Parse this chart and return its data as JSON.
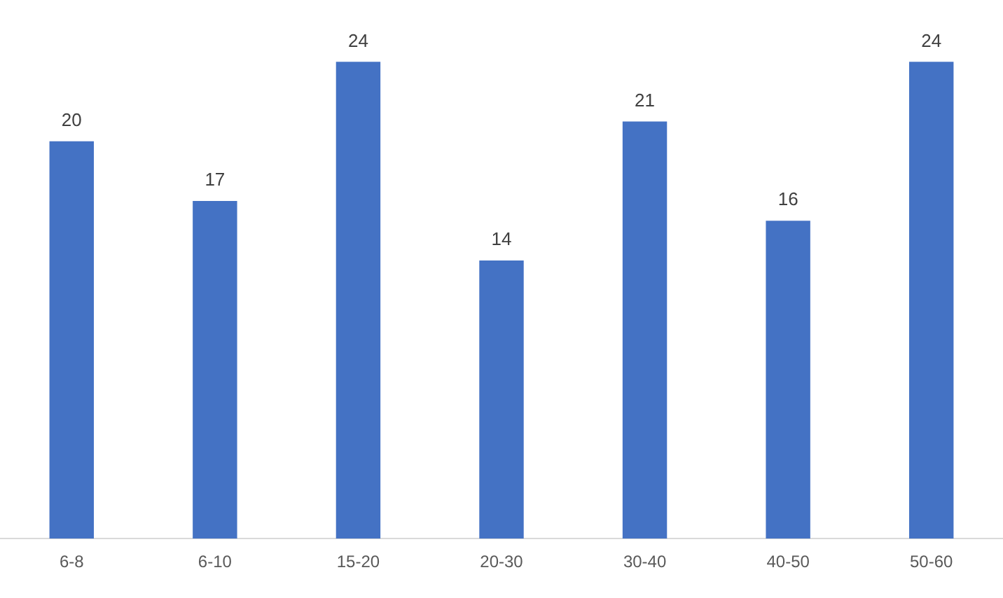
{
  "chart_data": {
    "type": "bar",
    "categories": [
      "6-8",
      "6-10",
      "15-20",
      "20-30",
      "30-40",
      "40-50",
      "50-60"
    ],
    "values": [
      20,
      17,
      24,
      14,
      21,
      16,
      24
    ],
    "color": "#4472c4",
    "data_labels": true,
    "grid": false,
    "legend": false,
    "tick_labels": "x"
  }
}
